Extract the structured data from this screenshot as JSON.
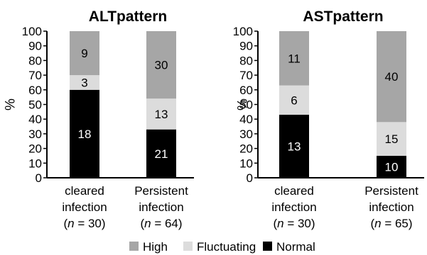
{
  "chart_data": [
    {
      "type": "bar",
      "stacked": true,
      "title": "ALTpattern",
      "ylabel": "%",
      "ylim": [
        0,
        100
      ],
      "yticks": [
        0,
        10,
        20,
        30,
        40,
        50,
        60,
        70,
        80,
        90,
        100
      ],
      "categories": [
        [
          "cleared",
          "infection",
          "(n = 30)"
        ],
        [
          "Persistent",
          "infection",
          "(n = 64)"
        ]
      ],
      "series": [
        {
          "name": "Normal",
          "percent": [
            60,
            33
          ],
          "labels": [
            "18",
            "21"
          ],
          "color": "#000000",
          "label_color": "#ffffff"
        },
        {
          "name": "Fluctuating",
          "percent": [
            10,
            21
          ],
          "labels": [
            "3",
            "13"
          ],
          "color": "#dcdcdc",
          "label_color": "#000000"
        },
        {
          "name": "High",
          "percent": [
            30,
            46
          ],
          "labels": [
            "9",
            "30"
          ],
          "color": "#a6a6a6",
          "label_color": "#000000"
        }
      ]
    },
    {
      "type": "bar",
      "stacked": true,
      "title": "ASTpattern",
      "ylabel": "%",
      "ylim": [
        0,
        100
      ],
      "yticks": [
        0,
        10,
        20,
        30,
        40,
        50,
        60,
        70,
        80,
        90,
        100
      ],
      "categories": [
        [
          "cleared",
          "infection",
          "(n = 30)"
        ],
        [
          "Persistent",
          "infection",
          "(n = 65)"
        ]
      ],
      "series": [
        {
          "name": "Normal",
          "percent": [
            43,
            15
          ],
          "labels": [
            "13",
            "10"
          ],
          "color": "#000000",
          "label_color": "#ffffff"
        },
        {
          "name": "Fluctuating",
          "percent": [
            20,
            23
          ],
          "labels": [
            "6",
            "15"
          ],
          "color": "#dcdcdc",
          "label_color": "#000000"
        },
        {
          "name": "High",
          "percent": [
            37,
            62
          ],
          "labels": [
            "11",
            "40"
          ],
          "color": "#a6a6a6",
          "label_color": "#000000"
        }
      ]
    }
  ],
  "legend": {
    "placement": "bottom-center",
    "items": [
      {
        "label": "High",
        "color": "#a6a6a6"
      },
      {
        "label": "Fluctuating",
        "color": "#dcdcdc"
      },
      {
        "label": "Normal",
        "color": "#000000"
      }
    ]
  }
}
